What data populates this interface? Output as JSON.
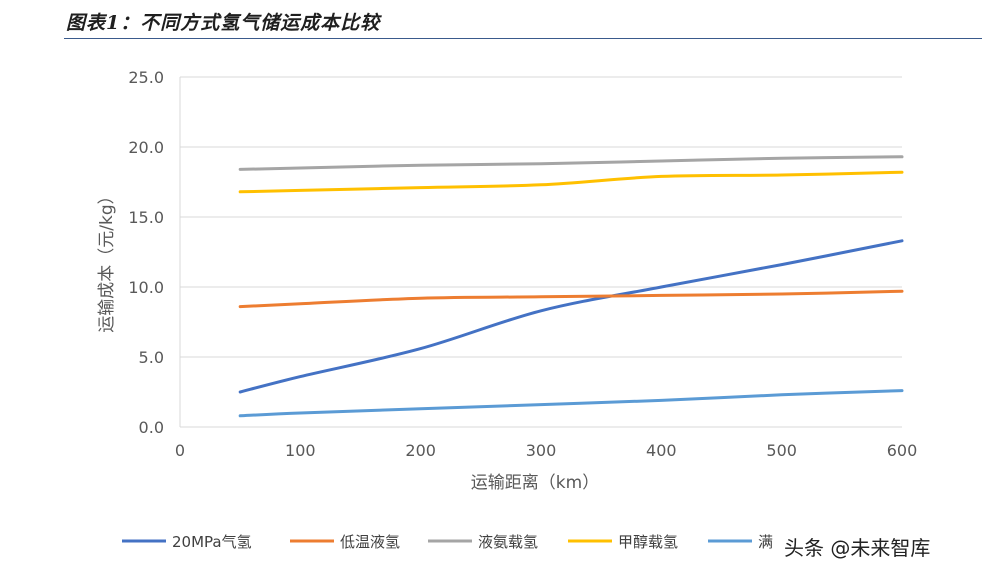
{
  "header": {
    "title": "图表1：不同方式氢气储运成本比较"
  },
  "watermark": {
    "text": "头条 @未来智库"
  },
  "chart_data": {
    "type": "line",
    "xlabel": "运输距离（km）",
    "ylabel": "运输成本（元/kg）",
    "xlim": [
      0,
      600
    ],
    "ylim": [
      0,
      25
    ],
    "x_ticks": [
      "0",
      "100",
      "200",
      "300",
      "400",
      "500",
      "600"
    ],
    "y_ticks": [
      "0.0",
      "5.0",
      "10.0",
      "15.0",
      "20.0",
      "25.0"
    ],
    "grid": "horizontal",
    "legend_position": "bottom",
    "series": [
      {
        "name": "20MPa气氢",
        "color": "#4472C4",
        "x": [
          50,
          100,
          200,
          300,
          400,
          500,
          600
        ],
        "y": [
          2.5,
          3.6,
          5.6,
          8.3,
          10.0,
          11.6,
          13.3
        ]
      },
      {
        "name": "低温液氢",
        "color": "#ED7D31",
        "x": [
          50,
          100,
          200,
          300,
          400,
          500,
          600
        ],
        "y": [
          8.6,
          8.8,
          9.2,
          9.3,
          9.4,
          9.5,
          9.7
        ]
      },
      {
        "name": "液氨载氢",
        "color": "#A5A5A5",
        "x": [
          50,
          100,
          200,
          300,
          400,
          500,
          600
        ],
        "y": [
          18.4,
          18.5,
          18.7,
          18.8,
          19.0,
          19.2,
          19.3
        ]
      },
      {
        "name": "甲醇载氢",
        "color": "#FFC000",
        "x": [
          50,
          100,
          200,
          300,
          400,
          500,
          600
        ],
        "y": [
          16.8,
          16.9,
          17.1,
          17.3,
          17.9,
          18.0,
          18.2
        ]
      },
      {
        "name": "满",
        "color": "#5B9BD5",
        "x": [
          50,
          100,
          200,
          300,
          400,
          500,
          600
        ],
        "y": [
          0.8,
          1.0,
          1.3,
          1.6,
          1.9,
          2.3,
          2.6
        ]
      }
    ]
  }
}
